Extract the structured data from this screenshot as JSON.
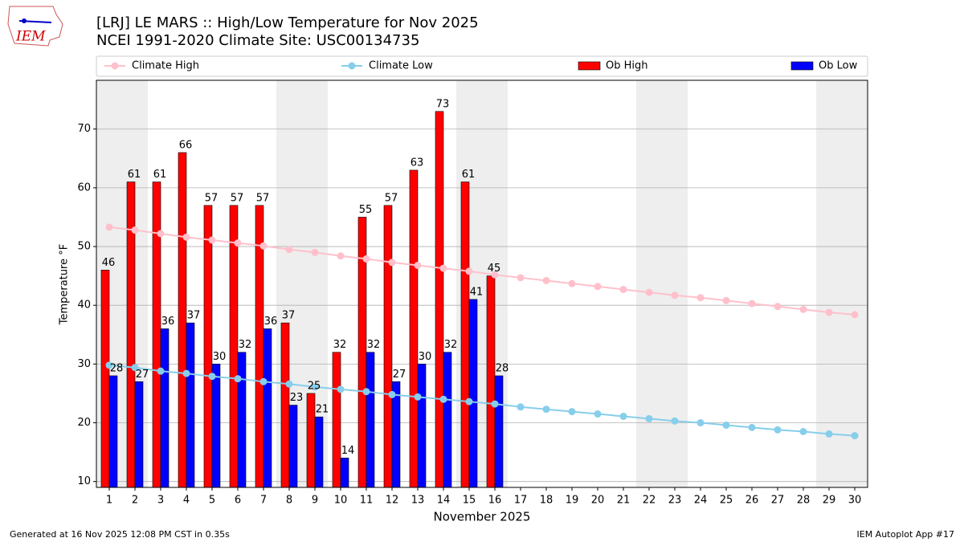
{
  "chart_data": {
    "type": "bar_line",
    "title": "[LRJ] LE MARS :: High/Low Temperature for Nov 2025",
    "subtitle": "NCEI 1991-2020 Climate Site: USC00134735",
    "logo_text": "IEM",
    "xlabel": "November 2025",
    "ylabel": "Temperature °F",
    "footer_left": "Generated at 16 Nov 2025 12:08 PM CST in 0.35s",
    "footer_right": "IEM Autoplot App #17",
    "x": [
      1,
      2,
      3,
      4,
      5,
      6,
      7,
      8,
      9,
      10,
      11,
      12,
      13,
      14,
      15,
      16,
      17,
      18,
      19,
      20,
      21,
      22,
      23,
      24,
      25,
      26,
      27,
      28,
      29,
      30
    ],
    "xlim": [
      0.5,
      30.5
    ],
    "xticks": [
      1,
      2,
      3,
      4,
      5,
      6,
      7,
      8,
      9,
      10,
      11,
      12,
      13,
      14,
      15,
      16,
      17,
      18,
      19,
      20,
      21,
      22,
      23,
      24,
      25,
      26,
      27,
      28,
      29,
      30
    ],
    "ylim": [
      9,
      78.3
    ],
    "yticks": [
      10,
      20,
      30,
      40,
      50,
      60,
      70
    ],
    "grid": true,
    "shaded_days": [
      1,
      2,
      8,
      9,
      15,
      16,
      22,
      23,
      29,
      30
    ],
    "series": [
      {
        "name": "Climate High",
        "kind": "line",
        "color": "#ffc0cb",
        "values": [
          53.3,
          52.8,
          52.2,
          51.6,
          51.1,
          50.6,
          50.1,
          49.5,
          49.0,
          48.4,
          47.9,
          47.3,
          46.8,
          46.3,
          45.8,
          45.2,
          44.7,
          44.2,
          43.7,
          43.2,
          42.7,
          42.2,
          41.7,
          41.3,
          40.8,
          40.3,
          39.8,
          39.3,
          38.8,
          38.4
        ]
      },
      {
        "name": "Climate Low",
        "kind": "line",
        "color": "#87ceeb",
        "values": [
          29.8,
          29.4,
          28.8,
          28.4,
          27.9,
          27.5,
          27.0,
          26.6,
          26.1,
          25.7,
          25.3,
          24.8,
          24.4,
          24.0,
          23.6,
          23.2,
          22.7,
          22.3,
          21.9,
          21.5,
          21.1,
          20.7,
          20.3,
          20.0,
          19.6,
          19.2,
          18.8,
          18.5,
          18.1,
          17.8
        ]
      },
      {
        "name": "Ob High",
        "kind": "bar",
        "color": "#ff0000",
        "values": [
          46,
          61,
          61,
          66,
          57,
          57,
          57,
          37,
          25,
          32,
          55,
          57,
          63,
          73,
          61,
          45,
          null,
          null,
          null,
          null,
          null,
          null,
          null,
          null,
          null,
          null,
          null,
          null,
          null,
          null
        ]
      },
      {
        "name": "Ob Low",
        "kind": "bar",
        "color": "#0000ff",
        "values": [
          28,
          27,
          36,
          37,
          30,
          32,
          36,
          23,
          21,
          14,
          32,
          27,
          30,
          32,
          41,
          28,
          null,
          null,
          null,
          null,
          null,
          null,
          null,
          null,
          null,
          null,
          null,
          null,
          null,
          null
        ]
      }
    ]
  }
}
